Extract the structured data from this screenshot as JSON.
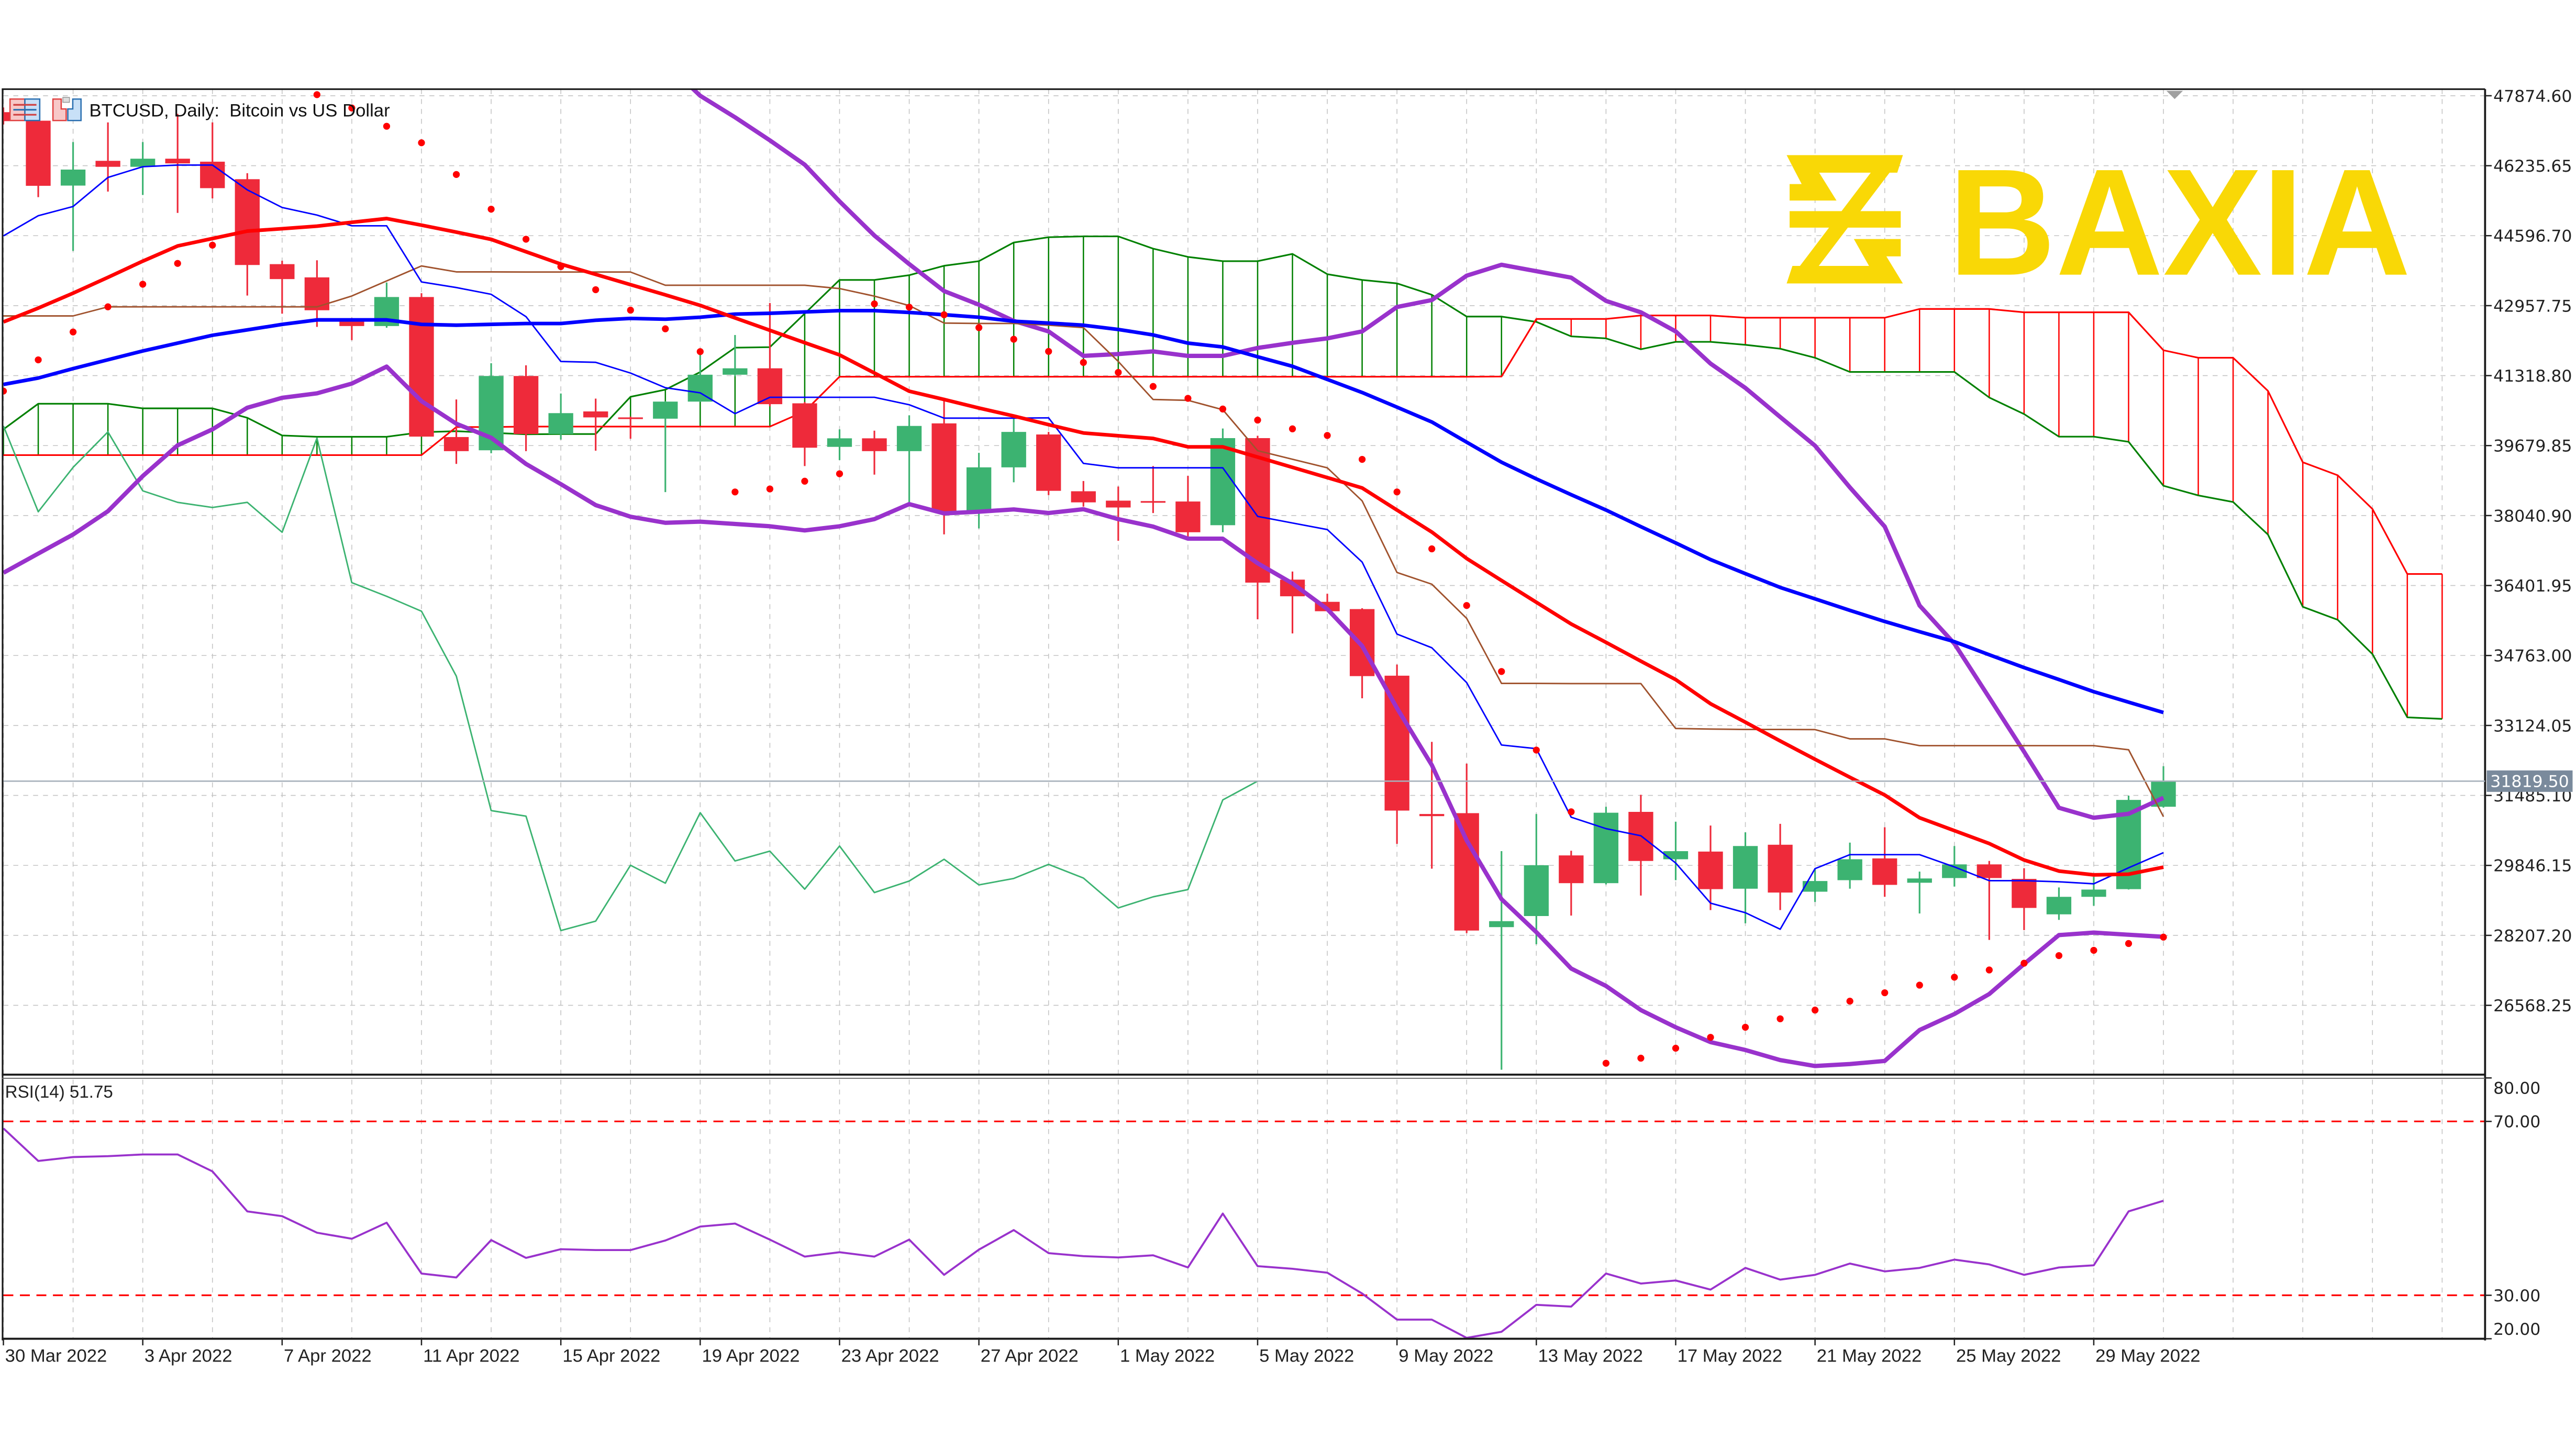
{
  "header": {
    "title": "BTCUSD, Daily:  Bitcoin vs US Dollar",
    "icons": [
      "chart-properties-icon",
      "one-click-trading-icon"
    ]
  },
  "logo": {
    "text": "BAXIA",
    "color": "#f9d806"
  },
  "current_price": {
    "label": "31819.50",
    "value": 31819.5,
    "box_color": "#7a8a9c"
  },
  "colors": {
    "bull": "#3cb371",
    "bear": "#ee2a3a",
    "grid": "#c4c4c4",
    "ma_fast": "#ff0000",
    "ma_slow": "#0000ff",
    "bollinger": "#9932cc",
    "tenkan": "#0000ff",
    "kijun": "#a0522d",
    "senkou_a": "#008000",
    "senkou_b": "#ff0000",
    "chikou": "#3cb371",
    "psar": "#ff0000",
    "rsi": "#9932cc",
    "rsi_levels": "#ff0000"
  },
  "price_axis": {
    "ticks": [
      "47874.60",
      "46235.65",
      "44596.70",
      "42957.75",
      "41318.80",
      "39679.85",
      "38040.90",
      "36401.95",
      "34763.00",
      "33124.05",
      "31485.10",
      "29846.15",
      "28207.20",
      "26568.25"
    ]
  },
  "time_axis": {
    "ticks": [
      "30 Mar 2022",
      "3 Apr 2022",
      "7 Apr 2022",
      "11 Apr 2022",
      "15 Apr 2022",
      "19 Apr 2022",
      "23 Apr 2022",
      "27 Apr 2022",
      "1 May 2022",
      "5 May 2022",
      "9 May 2022",
      "13 May 2022",
      "17 May 2022",
      "21 May 2022",
      "25 May 2022",
      "29 May 2022"
    ]
  },
  "rsi_panel": {
    "label": "RSI(14) 51.75",
    "ticks": [
      "80.00",
      "70.00",
      "30.00",
      "20.00"
    ],
    "ylim": [
      20,
      80
    ],
    "levels": [
      70,
      30
    ]
  },
  "chart_data": {
    "type": "candlestick",
    "symbol": "BTCUSD",
    "timeframe": "Daily",
    "ylim": [
      24930,
      47874.6
    ],
    "grid": true,
    "candles": [
      [
        "2022-03-30",
        47490,
        47600,
        47200,
        47280
      ],
      [
        "2022-03-31",
        47290,
        47290,
        45500,
        45765
      ],
      [
        "2022-04-01",
        45770,
        46790,
        44240,
        46145
      ],
      [
        "2022-04-02",
        46350,
        47250,
        45630,
        46210
      ],
      [
        "2022-04-03",
        46210,
        46790,
        45550,
        46400
      ],
      [
        "2022-04-04",
        46400,
        47450,
        45130,
        46290
      ],
      [
        "2022-04-05",
        46330,
        47250,
        45470,
        45710
      ],
      [
        "2022-04-06",
        45920,
        46060,
        43195,
        43910
      ],
      [
        "2022-04-07",
        43930,
        44010,
        42770,
        43580
      ],
      [
        "2022-04-08",
        43620,
        44020,
        42460,
        42850
      ],
      [
        "2022-04-09",
        42590,
        42670,
        42150,
        42480
      ],
      [
        "2022-04-10",
        42480,
        43500,
        42440,
        43160
      ],
      [
        "2022-04-11",
        43160,
        43250,
        39890,
        39890
      ],
      [
        "2022-04-12",
        39880,
        40760,
        39250,
        39550
      ],
      [
        "2022-04-13",
        39570,
        41610,
        39500,
        41310
      ],
      [
        "2022-04-14",
        41310,
        41560,
        39550,
        39950
      ],
      [
        "2022-04-15",
        39950,
        40900,
        39820,
        40440
      ],
      [
        "2022-04-16",
        40480,
        40780,
        39560,
        40340
      ],
      [
        "2022-04-17",
        40340,
        40360,
        39840,
        40310
      ],
      [
        "2022-04-18",
        40310,
        40720,
        38590,
        40710
      ],
      [
        "2022-04-19",
        40710,
        41900,
        40700,
        41340
      ],
      [
        "2022-04-20",
        41340,
        42270,
        41300,
        41490
      ],
      [
        "2022-04-21",
        41490,
        43020,
        40600,
        40650
      ],
      [
        "2022-04-22",
        40670,
        40700,
        39200,
        39630
      ],
      [
        "2022-04-23",
        39650,
        40060,
        39340,
        39850
      ],
      [
        "2022-04-24",
        39850,
        40030,
        39000,
        39550
      ],
      [
        "2022-04-25",
        39550,
        40390,
        38330,
        40140
      ],
      [
        "2022-04-26",
        40200,
        40800,
        37600,
        38130
      ],
      [
        "2022-04-27",
        38130,
        39510,
        37740,
        39170
      ],
      [
        "2022-04-28",
        39170,
        40370,
        38820,
        40000
      ],
      [
        "2022-04-29",
        39940,
        40000,
        38520,
        38620
      ],
      [
        "2022-04-30",
        38610,
        38850,
        38250,
        38350
      ],
      [
        "2022-05-01",
        38390,
        38720,
        37450,
        38230
      ],
      [
        "2022-05-02",
        38380,
        39200,
        38100,
        38350
      ],
      [
        "2022-05-03",
        38370,
        38970,
        37550,
        37650
      ],
      [
        "2022-05-04",
        37815,
        40080,
        37650,
        39855
      ],
      [
        "2022-05-05",
        39855,
        39910,
        35610,
        36470
      ],
      [
        "2022-05-06",
        36540,
        36730,
        35280,
        36150
      ],
      [
        "2022-05-07",
        36020,
        36210,
        35800,
        35800
      ],
      [
        "2022-05-08",
        35850,
        35870,
        33760,
        34280
      ],
      [
        "2022-05-09",
        34290,
        34550,
        30350,
        31130
      ],
      [
        "2022-05-10",
        31050,
        32740,
        29770,
        31000
      ],
      [
        "2022-05-11",
        31070,
        32230,
        28260,
        28320
      ],
      [
        "2022-05-12",
        28400,
        30180,
        25060,
        28540
      ],
      [
        "2022-05-13",
        28660,
        31050,
        28000,
        29850
      ],
      [
        "2022-05-14",
        30080,
        30190,
        28670,
        29430
      ],
      [
        "2022-05-15",
        29430,
        31220,
        29400,
        31080
      ],
      [
        "2022-05-16",
        31100,
        31500,
        29140,
        29950
      ],
      [
        "2022-05-17",
        29990,
        30870,
        29500,
        30180
      ],
      [
        "2022-05-18",
        30170,
        30780,
        28800,
        29290
      ],
      [
        "2022-05-19",
        29300,
        30620,
        28490,
        30300
      ],
      [
        "2022-05-20",
        30330,
        30820,
        28800,
        29210
      ],
      [
        "2022-05-21",
        29230,
        29780,
        28990,
        29480
      ],
      [
        "2022-05-22",
        29500,
        30380,
        29300,
        29990
      ],
      [
        "2022-05-23",
        30010,
        30740,
        29110,
        29390
      ],
      [
        "2022-05-24",
        29440,
        29700,
        28720,
        29540
      ],
      [
        "2022-05-25",
        29550,
        30300,
        29350,
        29870
      ],
      [
        "2022-05-26",
        29870,
        29950,
        28100,
        29550
      ],
      [
        "2022-05-27",
        29530,
        29780,
        28330,
        28850
      ],
      [
        "2022-05-28",
        28700,
        29330,
        28570,
        29110
      ],
      [
        "2022-05-29",
        29110,
        29580,
        28900,
        29280
      ],
      [
        "2022-05-30",
        29290,
        31480,
        29280,
        31380
      ],
      [
        "2022-05-31",
        31220,
        32170,
        31200,
        31819.5
      ]
    ],
    "candle_fields": [
      "date",
      "open",
      "high",
      "low",
      "close"
    ],
    "overlays": {
      "ma_fast": [
        42577,
        42900,
        43250,
        43620,
        44000,
        44356,
        44530,
        44704,
        44760,
        44820,
        44910,
        44998,
        44843,
        44680,
        44510,
        44220,
        43931,
        43690,
        43450,
        43210,
        42964,
        42670,
        42380,
        42090,
        41804,
        41380,
        40953,
        40760,
        40560,
        40373,
        40170,
        39975,
        39910,
        39847,
        39650,
        39650,
        39410,
        39170,
        38930,
        38687,
        38170,
        37655,
        37036,
        36520,
        36010,
        35501,
        35070,
        34630,
        34198,
        33633,
        33200,
        32760,
        32331,
        31910,
        31495,
        30962,
        30660,
        30358,
        29972,
        29713,
        29624,
        29640,
        29805
      ],
      "ma_slow": [
        41112,
        41262,
        41483,
        41690,
        41896,
        42080,
        42264,
        42390,
        42519,
        42624,
        42624,
        42624,
        42519,
        42500,
        42520,
        42539,
        42539,
        42616,
        42659,
        42640,
        42686,
        42760,
        42779,
        42810,
        42841,
        42841,
        42798,
        42745,
        42686,
        42593,
        42550,
        42500,
        42400,
        42272,
        42080,
        41990,
        41760,
        41537,
        41230,
        40923,
        40580,
        40233,
        39760,
        39290,
        38900,
        38530,
        38170,
        37780,
        37400,
        37010,
        36680,
        36357,
        36090,
        35820,
        35560,
        35320,
        35087,
        34780,
        34480,
        34200,
        33915,
        33670,
        33428
      ],
      "bollinger_upper": [
        null,
        null,
        null,
        null,
        null,
        null,
        null,
        null,
        null,
        null,
        null,
        null,
        null,
        null,
        null,
        null,
        null,
        null,
        null,
        48650,
        47875,
        47370,
        46830,
        46260,
        45400,
        44600,
        43931,
        43300,
        42980,
        42600,
        42354,
        41781,
        41824,
        41886,
        41781,
        41781,
        41967,
        42087,
        42191,
        42354,
        42926,
        43088,
        43660,
        43915,
        43765,
        43614,
        43069,
        42802,
        42354,
        41600,
        41030,
        40350,
        39677,
        38700,
        37782,
        35934,
        35040,
        33777,
        32508,
        31196,
        30962,
        31055,
        31430
      ],
      "bollinger_lower": [
        36700,
        37150,
        37597,
        38143,
        38966,
        39686,
        40060,
        40567,
        40799,
        40904,
        41132,
        41530,
        40722,
        40192,
        39863,
        39250,
        38777,
        38286,
        38014,
        37871,
        37898,
        37844,
        37790,
        37693,
        37790,
        37957,
        38309,
        38092,
        38131,
        38185,
        38100,
        38189,
        37957,
        37783,
        37500,
        37500,
        36924,
        36452,
        35850,
        34987,
        33530,
        32196,
        30432,
        29056,
        28282,
        27430,
        27022,
        26457,
        26055,
        25707,
        25522,
        25286,
        25147,
        25193,
        25266,
        25990,
        26365,
        26833,
        27537,
        28214,
        28272,
        28222,
        28174
      ],
      "tenkan": [
        44592,
        45064,
        45281,
        45961,
        46212,
        46251,
        46251,
        45670,
        45257,
        45079,
        44828,
        44828,
        43513,
        43382,
        43223,
        42700,
        41650,
        41630,
        41379,
        41035,
        40915,
        40428,
        40811,
        40811,
        40811,
        40811,
        40636,
        40323,
        40323,
        40323,
        40330,
        39263,
        39159,
        39159,
        39159,
        39159,
        38022,
        37867,
        37713,
        36951,
        35265,
        34944,
        34128,
        32666,
        32581,
        30975,
        30707,
        30540,
        29902,
        28962,
        28738,
        28351,
        29770,
        30098,
        30098,
        30098,
        29810,
        29489,
        29489,
        29462,
        29415,
        29790,
        30145
      ],
      "kijun": [
        42717,
        42717,
        42717,
        42930,
        42930,
        42930,
        42930,
        42930,
        42930,
        42930,
        43184,
        43536,
        43888,
        43749,
        43749,
        43745,
        43745,
        43745,
        43745,
        43436,
        43436,
        43436,
        43436,
        43436,
        43358,
        43180,
        42960,
        42550,
        42540,
        42540,
        42500,
        42443,
        41650,
        40760,
        40740,
        40520,
        39561,
        39360,
        39159,
        38385,
        36708,
        36433,
        35633,
        34109,
        34109,
        34105,
        34105,
        34105,
        33053,
        33040,
        33030,
        33030,
        33027,
        32810,
        32810,
        32651,
        32651,
        32651,
        32651,
        32651,
        32651,
        32555,
        30988
      ],
      "senkou_a": [
        40060,
        40660,
        40660,
        40660,
        40552,
        40552,
        40552,
        40331,
        39917,
        39886,
        39886,
        39886,
        39994,
        40017,
        39980,
        39945,
        39951,
        39951,
        40823,
        40989,
        41402,
        41974,
        41986,
        42771,
        43560,
        43560,
        43672,
        43892,
        44000,
        44437,
        44561,
        44580,
        44580,
        44293,
        44100,
        44000,
        44000,
        44170,
        43695,
        43560,
        43479,
        43212,
        42702,
        42702,
        42578,
        42238,
        42191,
        41936,
        42110,
        42110,
        42040,
        41949,
        41737,
        41405,
        41405,
        41405,
        41405,
        40806,
        40418,
        39889,
        39889,
        39769,
        38739,
        38513,
        38358,
        37596,
        35903,
        35600,
        34795,
        33314,
        33278
      ],
      "senkou_b": [
        39457,
        39457,
        39457,
        39457,
        39457,
        39457,
        39457,
        39457,
        39457,
        39457,
        39457,
        39457,
        39457,
        40114,
        40114,
        40125,
        40125,
        40125,
        40125,
        40125,
        40125,
        40125,
        40125,
        40482,
        41293,
        41293,
        41293,
        41293,
        41293,
        41293,
        41293,
        41293,
        41293,
        41293,
        41293,
        41293,
        41293,
        41293,
        41293,
        41293,
        41293,
        41293,
        41293,
        41298,
        42647,
        42647,
        42647,
        42728,
        42728,
        42728,
        42675,
        42675,
        42675,
        42675,
        42675,
        42880,
        42880,
        42880,
        42802,
        42802,
        42802,
        42802,
        41913,
        41737,
        41737,
        40961,
        39289,
        38985,
        38195,
        36672,
        36672
      ],
      "chikou_shift": 26,
      "psar": [
        40957,
        41688,
        42341,
        42930,
        43460,
        43947,
        44375,
        null,
        null,
        47900,
        47588,
        47160,
        46773,
        46030,
        45218,
        44514,
        43873,
        43331,
        42852,
        42415,
        41881,
        38594,
        38664,
        38846,
        39020,
        42999,
        42922,
        42745,
        42443,
        42171,
        41886,
        41627,
        41394,
        41065,
        40787,
        40536,
        40277,
        40072,
        39917,
        39357,
        38594,
        37261,
        35934,
        34388,
        32547,
        31101,
        25212,
        25331,
        25564,
        25819,
        26055,
        26253,
        26457,
        26666,
        26863,
        27041,
        27227,
        27397,
        27555,
        27733,
        27857,
        28016,
        28166
      ]
    },
    "rsi": {
      "name": "RSI(14)",
      "values": [
        68.4,
        60.9,
        61.8,
        62.0,
        62.4,
        62.4,
        58.5,
        49.3,
        48.2,
        44.4,
        43.0,
        46.7,
        35.0,
        34.1,
        42.7,
        38.6,
        40.6,
        40.4,
        40.4,
        42.6,
        45.8,
        46.5,
        42.8,
        38.9,
        39.9,
        38.9,
        42.8,
        34.7,
        40.5,
        45.0,
        39.7,
        39.0,
        38.7,
        39.2,
        36.4,
        48.8,
        36.7,
        36.1,
        35.2,
        30.4,
        24.4,
        24.4,
        20.2,
        21.6,
        27.8,
        27.4,
        35.0,
        32.7,
        33.4,
        31.3,
        36.3,
        33.6,
        34.7,
        37.3,
        35.5,
        36.3,
        38.2,
        37.1,
        34.7,
        36.4,
        36.9,
        49.3,
        51.75
      ]
    }
  }
}
